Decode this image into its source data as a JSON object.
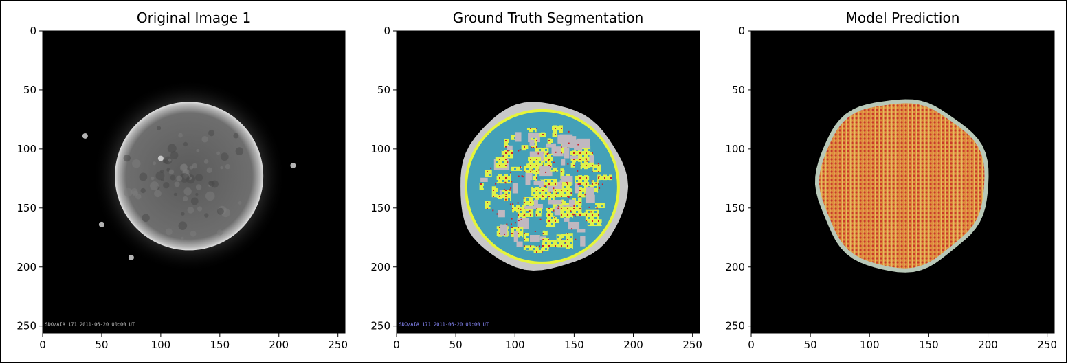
{
  "chart_data": [
    {
      "type": "heatmap",
      "title": "Original Image 1",
      "xlim": [
        0,
        256
      ],
      "ylim": [
        256,
        0
      ],
      "xticks": [
        0,
        50,
        100,
        150,
        200,
        250
      ],
      "yticks": [
        0,
        50,
        100,
        150,
        200,
        250
      ],
      "xlabel": "",
      "ylabel": "",
      "image": "grayscale solar disk",
      "annotation": "SDO/AIA 171  2011-06-20 00:00 UT",
      "annotation_color": "#bbbbbb",
      "colors": {
        "background": "#000000",
        "disk": "#6a6a6a",
        "limb": "#d8d8d8"
      }
    },
    {
      "type": "heatmap",
      "title": "Ground Truth Segmentation",
      "xlim": [
        0,
        256
      ],
      "ylim": [
        256,
        0
      ],
      "xticks": [
        0,
        50,
        100,
        150,
        200,
        250
      ],
      "yticks": [
        0,
        50,
        100,
        150,
        200,
        250
      ],
      "xlabel": "",
      "ylabel": "",
      "image": "segmentation mask",
      "annotation": "SDO/AIA 171  2011-06-20 00:00 UT",
      "annotation_color": "#8c8cff",
      "colors": {
        "background": "#000000",
        "halo": "#c8c8c8",
        "rim": "#e6f53a",
        "disk": "#44a0b8",
        "region": "#dff24a",
        "edge": "#d0202a",
        "gray": "#c0b8c0"
      }
    },
    {
      "type": "heatmap",
      "title": "Model Prediction",
      "xlim": [
        0,
        256
      ],
      "ylim": [
        256,
        0
      ],
      "xticks": [
        0,
        50,
        100,
        150,
        200,
        250
      ],
      "yticks": [
        0,
        50,
        100,
        150,
        200,
        250
      ],
      "xlabel": "",
      "ylabel": "",
      "image": "predicted mask",
      "colors": {
        "background": "#000000",
        "fill": "#e08c3e",
        "dot": "#c83a2a",
        "light": "#e8d070",
        "edge": "#b8c8b8"
      }
    }
  ]
}
